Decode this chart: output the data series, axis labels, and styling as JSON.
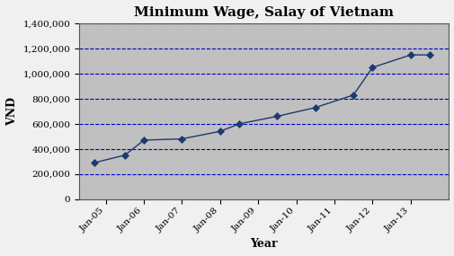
{
  "title": "Minimum Wage, Salay of Vietnam",
  "xlabel": "Year",
  "ylabel": "VND",
  "x_labels": [
    "Jan-05",
    "Jan-06",
    "Jan-07",
    "Jan-08",
    "Jan-09",
    "Jan-10",
    "Jan-11",
    "Jan-12",
    "Jan-13"
  ],
  "x_numeric": [
    0,
    1,
    2,
    3,
    4,
    5,
    6,
    7,
    8
  ],
  "x_data": [
    -0.3,
    0.5,
    1.0,
    2.0,
    3.0,
    3.5,
    4.5,
    5.5,
    6.5,
    7.0,
    8.0,
    8.5
  ],
  "y_values": [
    290000,
    350000,
    470000,
    480000,
    540000,
    600000,
    660000,
    730000,
    830000,
    1050000,
    1150000,
    1150000
  ],
  "ylim": [
    0,
    1400000
  ],
  "yticks": [
    0,
    200000,
    400000,
    600000,
    800000,
    1000000,
    1200000,
    1400000
  ],
  "line_color": "#1C3A6E",
  "marker": "D",
  "marker_size": 4,
  "plot_bg_color": "#C0C0C0",
  "fig_bg_color": "#F0F0F0",
  "grid_color": "#0000CC",
  "title_fontsize": 11,
  "axis_label_fontsize": 9,
  "tick_fontsize": 7.5
}
